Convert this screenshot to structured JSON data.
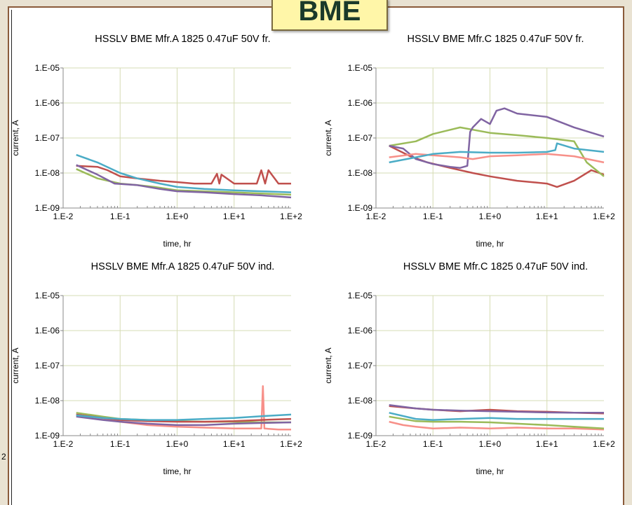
{
  "badge_text": "BME",
  "stub_text": "2",
  "chart_data": [
    {
      "type": "line",
      "title": "HSSLV BME Mfr.A 1825 0.47uF 50V fr.",
      "xlabel": "time, hr",
      "ylabel": "current, A",
      "xscale": "log",
      "yscale": "log",
      "xlim": [
        0.01,
        100
      ],
      "ylim": [
        1e-09,
        1e-05
      ],
      "xticks": [
        "1.E-2",
        "1.E-1",
        "1.E+0",
        "1.E+1",
        "1.E+2"
      ],
      "yticks": [
        "1.E-05",
        "1.E-06",
        "1.E-07",
        "1.E-08",
        "1.E-09"
      ],
      "grid": true,
      "series": [
        {
          "color": "#c0504d",
          "x": [
            0.017,
            0.04,
            0.06,
            0.1,
            0.2,
            0.5,
            1,
            2,
            4,
            5,
            5.5,
            6,
            10,
            25,
            30,
            35,
            40,
            60,
            100
          ],
          "y": [
            1.6e-08,
            1.5e-08,
            1.2e-08,
            8e-09,
            7e-09,
            6e-09,
            5.5e-09,
            5e-09,
            5e-09,
            9.5e-09,
            5e-09,
            9e-09,
            5e-09,
            5e-09,
            1.2e-08,
            5e-09,
            1.2e-08,
            5e-09,
            5e-09
          ]
        },
        {
          "color": "#9bbb59",
          "x": [
            0.017,
            0.04,
            0.1,
            0.2,
            0.4,
            1,
            3,
            10,
            30,
            100
          ],
          "y": [
            1.3e-08,
            7e-09,
            5e-09,
            4.5e-09,
            4e-09,
            3.2e-09,
            3e-09,
            2.8e-09,
            2.6e-09,
            2.4e-09
          ]
        },
        {
          "color": "#8064a2",
          "x": [
            0.017,
            0.04,
            0.08,
            0.2,
            0.5,
            1,
            3,
            10,
            30,
            100
          ],
          "y": [
            1.7e-08,
            9e-09,
            5e-09,
            4.5e-09,
            3.5e-09,
            3e-09,
            2.8e-09,
            2.5e-09,
            2.3e-09,
            2e-09
          ]
        },
        {
          "color": "#4bacc6",
          "x": [
            0.017,
            0.04,
            0.1,
            0.2,
            0.5,
            1,
            3,
            10,
            30,
            100
          ],
          "y": [
            3.3e-08,
            2e-08,
            1e-08,
            7e-09,
            5e-09,
            4e-09,
            3.5e-09,
            3.2e-09,
            3e-09,
            2.8e-09
          ]
        }
      ]
    },
    {
      "type": "line",
      "title": "HSSLV BME Mfr.C 1825 0.47uF 50V fr.",
      "xlabel": "time, hr",
      "ylabel": "current, A",
      "xscale": "log",
      "yscale": "log",
      "xlim": [
        0.01,
        100
      ],
      "ylim": [
        1e-09,
        1e-05
      ],
      "xticks": [
        "1.E-2",
        "1.E-1",
        "1.E+0",
        "1.E+1",
        "1.E+2"
      ],
      "yticks": [
        "1.E-05",
        "1.E-06",
        "1.E-07",
        "1.E-08",
        "1.E-09"
      ],
      "grid": true,
      "series": [
        {
          "color": "#c0504d",
          "x": [
            0.017,
            0.04,
            0.08,
            0.2,
            0.5,
            1,
            3,
            10,
            15,
            30,
            60,
            100
          ],
          "y": [
            6e-08,
            3e-08,
            2e-08,
            1.4e-08,
            1e-08,
            8e-09,
            6e-09,
            5e-09,
            4e-09,
            6e-09,
            1.2e-08,
            9e-09
          ]
        },
        {
          "color": "#9bbb59",
          "x": [
            0.017,
            0.05,
            0.1,
            0.3,
            1,
            3,
            10,
            30,
            50,
            100
          ],
          "y": [
            6e-08,
            8e-08,
            1.3e-07,
            2e-07,
            1.4e-07,
            1.2e-07,
            1e-07,
            8e-08,
            2e-08,
            8e-09
          ]
        },
        {
          "color": "#8064a2",
          "x": [
            0.017,
            0.03,
            0.05,
            0.1,
            0.2,
            0.3,
            0.4,
            0.45,
            0.5,
            0.7,
            1,
            1.3,
            1.8,
            3,
            10,
            30,
            100
          ],
          "y": [
            6e-08,
            5e-08,
            2.5e-08,
            1.8e-08,
            1.5e-08,
            1.4e-08,
            1.6e-08,
            1.5e-07,
            2e-07,
            3.5e-07,
            2.5e-07,
            6e-07,
            7e-07,
            5e-07,
            4e-07,
            2e-07,
            1.1e-07
          ]
        },
        {
          "color": "#f79089",
          "x": [
            0.017,
            0.05,
            0.1,
            0.3,
            0.5,
            1,
            3,
            10,
            30,
            100
          ],
          "y": [
            2.8e-08,
            3.5e-08,
            3.2e-08,
            2.8e-08,
            2.5e-08,
            3e-08,
            3.2e-08,
            3.5e-08,
            3e-08,
            2e-08
          ]
        },
        {
          "color": "#4bacc6",
          "x": [
            0.017,
            0.05,
            0.1,
            0.3,
            1,
            3,
            10,
            14,
            15,
            30,
            100
          ],
          "y": [
            2e-08,
            2.8e-08,
            3.5e-08,
            4e-08,
            3.8e-08,
            3.8e-08,
            4e-08,
            4.5e-08,
            7e-08,
            5e-08,
            4e-08
          ]
        }
      ]
    },
    {
      "type": "line",
      "title": "HSSLV BME Mfr.A 1825 0.47uF 50V ind.",
      "xlabel": "time, hr",
      "ylabel": "current, A",
      "xscale": "log",
      "yscale": "log",
      "xlim": [
        0.01,
        100
      ],
      "ylim": [
        1e-09,
        1e-05
      ],
      "xticks": [
        "1.E-2",
        "1.E-1",
        "1.E+0",
        "1.E+1",
        "1.E+2"
      ],
      "yticks": [
        "1.E-05",
        "1.E-06",
        "1.E-07",
        "1.E-08",
        "1.E-09"
      ],
      "grid": true,
      "series": [
        {
          "color": "#f79089",
          "x": [
            0.017,
            0.05,
            0.1,
            0.3,
            1,
            3,
            10,
            30,
            32,
            34,
            60,
            100
          ],
          "y": [
            4e-09,
            3e-09,
            2.5e-09,
            2e-09,
            1.8e-09,
            1.7e-09,
            1.6e-09,
            1.6e-09,
            2.6e-08,
            1.6e-09,
            1.5e-09,
            1.5e-09
          ]
        },
        {
          "color": "#9bbb59",
          "x": [
            0.017,
            0.05,
            0.1,
            0.3,
            1,
            3,
            10,
            30,
            100
          ],
          "y": [
            4.5e-09,
            3.5e-09,
            3e-09,
            2.8e-09,
            2.6e-09,
            2.5e-09,
            2.5e-09,
            2.4e-09,
            2.4e-09
          ]
        },
        {
          "color": "#8064a2",
          "x": [
            0.017,
            0.05,
            0.1,
            0.3,
            1,
            3,
            10,
            30,
            100
          ],
          "y": [
            3.5e-09,
            2.8e-09,
            2.5e-09,
            2.2e-09,
            2e-09,
            2e-09,
            2.2e-09,
            2.3e-09,
            2.4e-09
          ]
        },
        {
          "color": "#c0504d",
          "x": [
            0.017,
            0.05,
            0.1,
            0.3,
            1,
            3,
            10,
            30,
            100
          ],
          "y": [
            4e-09,
            3.2e-09,
            2.8e-09,
            2.6e-09,
            2.5e-09,
            2.5e-09,
            2.6e-09,
            2.8e-09,
            3e-09
          ]
        },
        {
          "color": "#4bacc6",
          "x": [
            0.017,
            0.05,
            0.1,
            0.3,
            1,
            3,
            10,
            30,
            100
          ],
          "y": [
            3.8e-09,
            3.2e-09,
            3e-09,
            2.8e-09,
            2.8e-09,
            3e-09,
            3.2e-09,
            3.6e-09,
            4e-09
          ]
        }
      ]
    },
    {
      "type": "line",
      "title": "HSSLV BME Mfr.C 1825 0.47uF 50V ind.",
      "xlabel": "time, hr",
      "ylabel": "current, A",
      "xscale": "log",
      "yscale": "log",
      "xlim": [
        0.01,
        100
      ],
      "ylim": [
        1e-09,
        1e-05
      ],
      "xticks": [
        "1.E-2",
        "1.E-1",
        "1.E+0",
        "1.E+1",
        "1.E+2"
      ],
      "yticks": [
        "1.E-05",
        "1.E-06",
        "1.E-07",
        "1.E-08",
        "1.E-09"
      ],
      "grid": true,
      "series": [
        {
          "color": "#f79089",
          "x": [
            0.017,
            0.03,
            0.05,
            0.1,
            0.3,
            1,
            3,
            10,
            30,
            100
          ],
          "y": [
            2.5e-09,
            2e-09,
            1.8e-09,
            1.6e-09,
            1.7e-09,
            1.6e-09,
            1.7e-09,
            1.6e-09,
            1.6e-09,
            1.5e-09
          ]
        },
        {
          "color": "#9bbb59",
          "x": [
            0.017,
            0.05,
            0.1,
            0.3,
            1,
            3,
            10,
            30,
            100
          ],
          "y": [
            3.5e-09,
            2.6e-09,
            2.5e-09,
            2.5e-09,
            2.4e-09,
            2.2e-09,
            2e-09,
            1.8e-09,
            1.6e-09
          ]
        },
        {
          "color": "#4bacc6",
          "x": [
            0.017,
            0.05,
            0.1,
            0.3,
            1,
            3,
            10,
            30,
            100
          ],
          "y": [
            4.5e-09,
            3e-09,
            2.8e-09,
            3e-09,
            3.2e-09,
            3e-09,
            3e-09,
            3e-09,
            3e-09
          ]
        },
        {
          "color": "#c0504d",
          "x": [
            0.017,
            0.05,
            0.1,
            0.3,
            1,
            3,
            10,
            30,
            100
          ],
          "y": [
            7e-09,
            6e-09,
            5.5e-09,
            5e-09,
            5.5e-09,
            5e-09,
            4.8e-09,
            4.5e-09,
            4.3e-09
          ]
        },
        {
          "color": "#8064a2",
          "x": [
            0.017,
            0.05,
            0.1,
            0.3,
            1,
            3,
            10,
            30,
            100
          ],
          "y": [
            7.5e-09,
            6e-09,
            5.5e-09,
            5.2e-09,
            5e-09,
            4.8e-09,
            4.6e-09,
            4.5e-09,
            4.5e-09
          ]
        }
      ]
    }
  ]
}
